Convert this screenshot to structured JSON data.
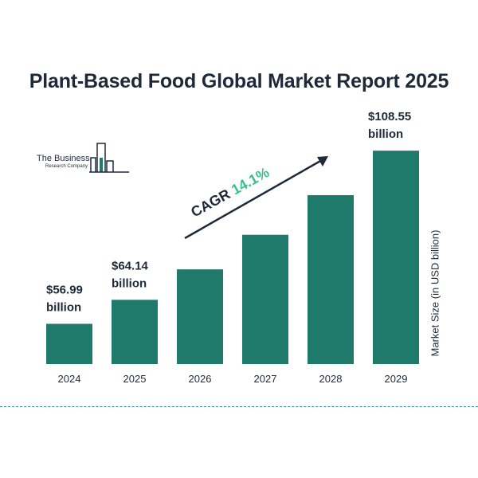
{
  "logo": {
    "name": "The Business",
    "sub": "Research Company",
    "colors": {
      "dark": "#1e2a3a",
      "teal": "#1f7a6c"
    }
  },
  "colors": {
    "bar": "#1f7a6c",
    "text": "#1e2a3a",
    "cagr_accent": "#3bbf8a",
    "divider": "#2a8a8a"
  },
  "chart_data": {
    "type": "bar",
    "title": "Plant-Based Food Global Market Report 2025",
    "ylabel": "Market Size (in USD billion)",
    "xlabel": "",
    "categories": [
      "2024",
      "2025",
      "2026",
      "2027",
      "2028",
      "2029"
    ],
    "values": [
      56.99,
      64.14,
      73.2,
      83.5,
      95.3,
      108.55
    ],
    "value_labels": [
      {
        "index": 0,
        "line1": "$56.99",
        "line2": "billion"
      },
      {
        "index": 1,
        "line1": "$64.14",
        "line2": "billion"
      },
      {
        "index": 5,
        "line1": "$108.55",
        "line2": "billion"
      }
    ],
    "cagr": {
      "prefix": "CAGR",
      "value": "14.1%"
    },
    "ylim": [
      45,
      110
    ],
    "grid": false,
    "legend": "none"
  }
}
